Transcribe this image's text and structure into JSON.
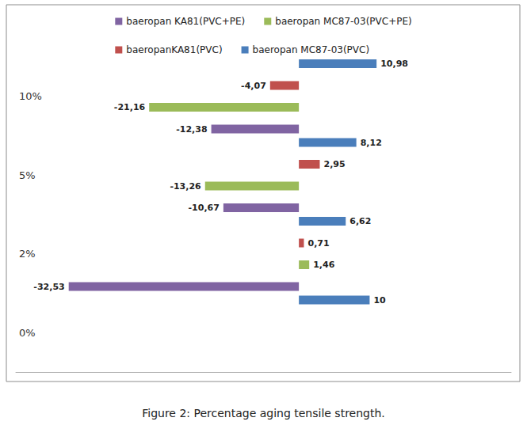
{
  "chart_data": {
    "type": "bar",
    "orientation": "horizontal",
    "title": "Figure 2: Percentage aging tensile strength.",
    "categories": [
      "0%",
      "2%",
      "5%",
      "10%"
    ],
    "series": [
      {
        "name": "baeropan MC87-03(PVC)",
        "color": "#4a7ebb",
        "values": [
          10,
          6.62,
          8.12,
          10.98
        ],
        "value_labels": [
          "10",
          "6,62",
          "8,12",
          "10,98"
        ]
      },
      {
        "name": "baeropanKA81(PVC)",
        "color": "#c0504d",
        "values": [
          null,
          0.71,
          2.95,
          -4.07
        ],
        "value_labels": [
          null,
          "0,71",
          "2,95",
          "-4,07"
        ]
      },
      {
        "name": "baeropan MC87-03(PVC+PE)",
        "color": "#9bbb59",
        "values": [
          null,
          1.46,
          -13.26,
          -21.16
        ],
        "value_labels": [
          null,
          "1,46",
          "-13,26",
          "-21,16"
        ]
      },
      {
        "name": "baeropan KA81(PVC+PE)",
        "color": "#8064a2",
        "values": [
          null,
          -32.53,
          -10.67,
          -12.38
        ],
        "value_labels": [
          null,
          "-32,53",
          "-10,67",
          "-12,38"
        ]
      }
    ],
    "xlim": [
      -40,
      30
    ],
    "data_labels": true,
    "legend": "top",
    "tick_labels": "y",
    "grid": false
  }
}
